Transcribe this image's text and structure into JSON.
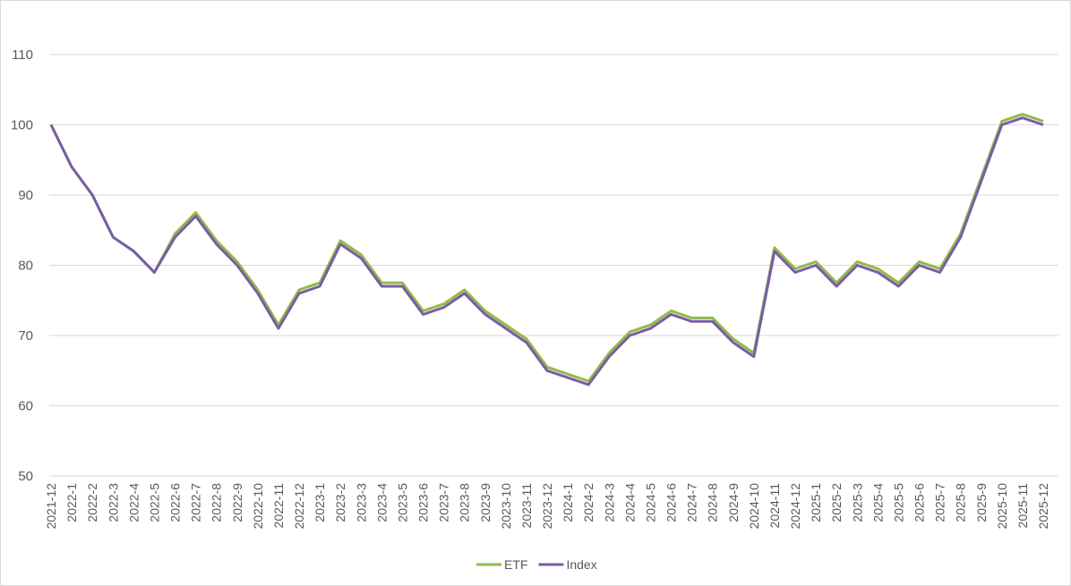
{
  "chart_data": {
    "type": "line",
    "x": [
      "2021-12",
      "2022-1",
      "2022-2",
      "2022-3",
      "2022-4",
      "2022-5",
      "2022-6",
      "2022-7",
      "2022-8",
      "2022-9",
      "2022-10",
      "2022-11",
      "2022-12",
      "2023-1",
      "2023-2",
      "2023-3",
      "2023-4",
      "2023-5",
      "2023-6",
      "2023-7",
      "2023-8",
      "2023-9",
      "2023-10",
      "2023-11",
      "2023-12",
      "2024-1",
      "2024-2",
      "2024-3",
      "2024-4",
      "2024-5",
      "2024-6",
      "2024-7",
      "2024-8",
      "2024-9",
      "2024-10",
      "2024-11",
      "2024-12",
      "2025-1",
      "2025-2",
      "2025-3",
      "2025-4",
      "2025-5",
      "2025-6",
      "2025-7",
      "2025-8",
      "2025-9",
      "2025-10",
      "2025-11",
      "2025-12"
    ],
    "series": [
      {
        "name": "ETF",
        "color": "#8fbc45",
        "values": [
          100,
          94,
          90,
          84,
          82,
          79,
          84.5,
          87.5,
          83.5,
          80.5,
          76.5,
          71.5,
          76.5,
          77.5,
          83.5,
          81.5,
          77.5,
          77.5,
          73.5,
          74.5,
          76.5,
          73.5,
          71.5,
          69.5,
          65.5,
          64.5,
          63.5,
          67.5,
          70.5,
          71.5,
          73.5,
          72.5,
          72.5,
          69.5,
          67.5,
          82.5,
          79.5,
          80.5,
          77.5,
          80.5,
          79.5,
          77.5,
          80.5,
          79.5,
          84.5,
          92.5,
          100.5,
          101.5,
          100.5
        ]
      },
      {
        "name": "Index",
        "color": "#7a5ca8",
        "values": [
          100,
          94,
          90,
          84,
          82,
          79,
          84,
          87,
          83,
          80,
          76,
          71,
          76,
          77,
          83,
          81,
          77,
          77,
          73,
          74,
          76,
          73,
          71,
          69,
          65,
          64,
          63,
          67,
          70,
          71,
          73,
          72,
          72,
          69,
          67,
          82,
          79,
          80,
          77,
          80,
          79,
          77,
          80,
          79,
          84,
          92,
          100,
          101,
          100
        ]
      }
    ],
    "ylim": [
      50,
      110
    ],
    "yticks": [
      50,
      60,
      70,
      80,
      90,
      100,
      110
    ],
    "grid": true,
    "legend": "bottom"
  }
}
